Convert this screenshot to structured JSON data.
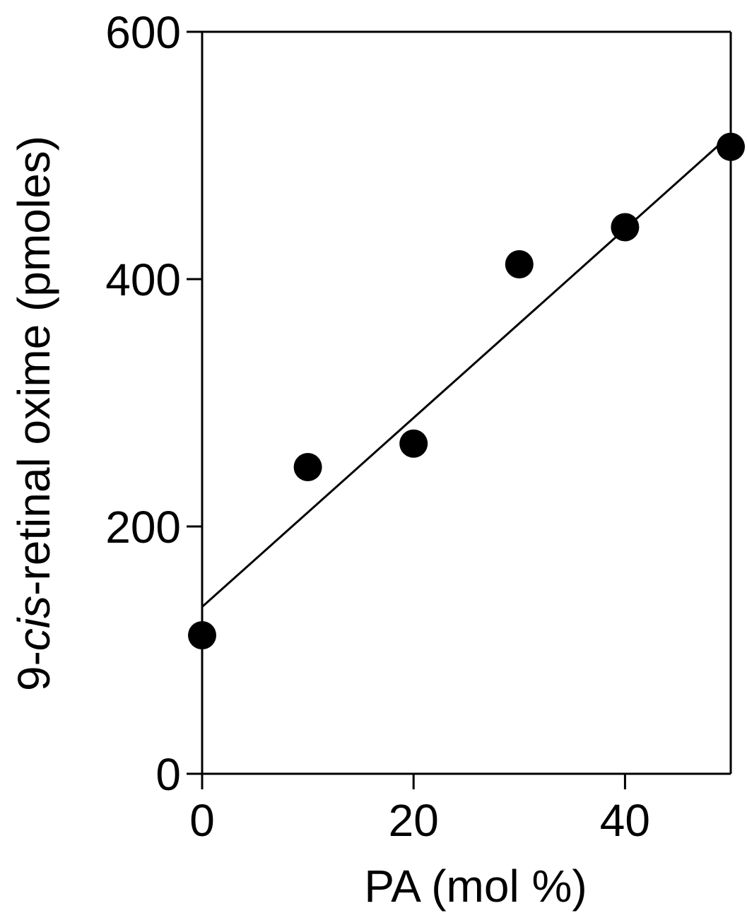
{
  "chart_data": {
    "type": "scatter",
    "title": "",
    "xlabel": "PA (mol %)",
    "ylabel": {
      "prefix": "9-",
      "italic": "cis",
      "suffix": "-retinal oxime (pmoles)"
    },
    "xlim": [
      0,
      50
    ],
    "ylim": [
      0,
      600
    ],
    "x_ticks": [
      0,
      20,
      40
    ],
    "x_tick_labels": [
      "0",
      "20",
      "40"
    ],
    "y_ticks": [
      0,
      200,
      400,
      600
    ],
    "y_tick_labels": [
      "0",
      "200",
      "400",
      "600"
    ],
    "grid": false,
    "series": [
      {
        "x": [
          0,
          10,
          20,
          30,
          40,
          50
        ],
        "y": [
          112,
          248,
          267,
          412,
          442,
          507
        ]
      }
    ],
    "fit_line": {
      "x": [
        0,
        50
      ],
      "y": [
        135,
        517
      ]
    },
    "colors": {
      "marker": "#000000",
      "line": "#000000",
      "axes": "#000000"
    }
  }
}
